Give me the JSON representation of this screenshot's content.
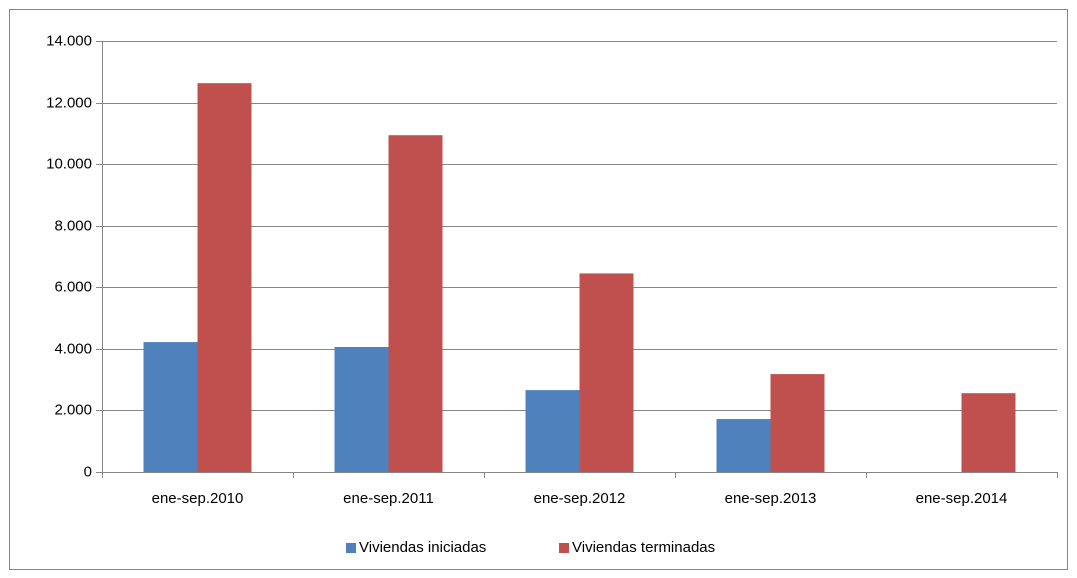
{
  "chart_data": {
    "type": "bar",
    "categories": [
      "ene-sep.2010",
      "ene-sep.2011",
      "ene-sep.2012",
      "ene-sep.2013",
      "ene-sep.2014"
    ],
    "series": [
      {
        "name": "Viviendas iniciadas",
        "color": "#4f81bd",
        "values": [
          4220,
          4060,
          2660,
          1720,
          null
        ]
      },
      {
        "name": "Viviendas terminadas",
        "color": "#c0504d",
        "values": [
          12630,
          10940,
          6450,
          3180,
          2560
        ]
      }
    ],
    "ylim": [
      0,
      14000
    ],
    "yticks": [
      0,
      {
        "value": 2000,
        "label": "2.000"
      },
      {
        "value": 4000,
        "label": "4.000"
      },
      {
        "value": 6000,
        "label": "6.000"
      },
      {
        "value": 8000,
        "label": "8.000"
      },
      {
        "value": 10000,
        "label": "10.000"
      },
      {
        "value": 12000,
        "label": "12.000"
      },
      {
        "value": 14000,
        "label": "14.000"
      }
    ],
    "grid": true,
    "legend": "bottom"
  }
}
